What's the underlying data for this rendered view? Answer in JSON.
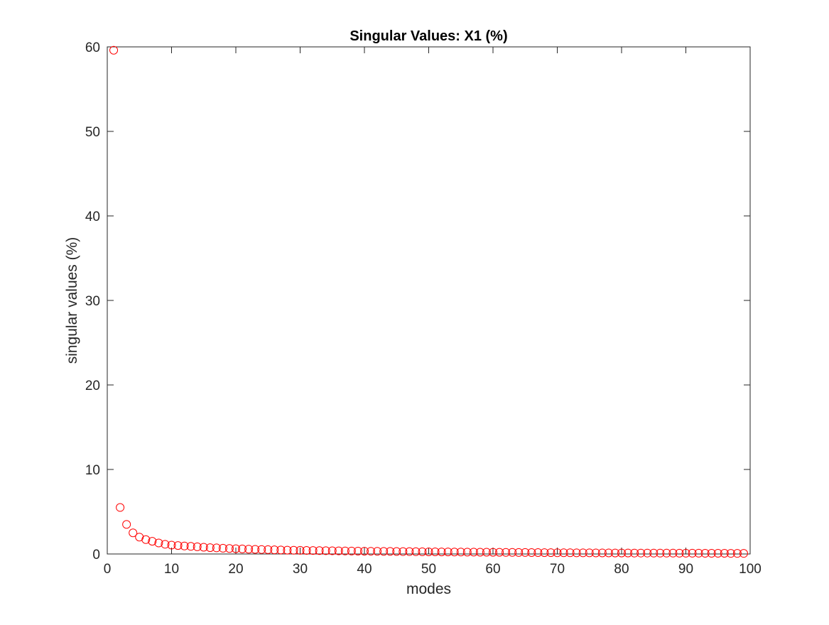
{
  "chart_data": {
    "type": "scatter",
    "title": "Singular Values: X1 (%)",
    "xlabel": "modes",
    "ylabel": "singular values (%)",
    "xlim": [
      0,
      100
    ],
    "ylim": [
      0,
      60
    ],
    "xticks": [
      0,
      10,
      20,
      30,
      40,
      50,
      60,
      70,
      80,
      90,
      100
    ],
    "yticks": [
      0,
      10,
      20,
      30,
      40,
      50,
      60
    ],
    "xtick_labels": [
      "0",
      "10",
      "20",
      "30",
      "40",
      "50",
      "60",
      "70",
      "80",
      "90",
      "100"
    ],
    "ytick_labels": [
      "0",
      "10",
      "20",
      "30",
      "40",
      "50",
      "60"
    ],
    "grid": false,
    "marker": "open-circle",
    "marker_color": "#ff0000",
    "axis_color": "#262626",
    "series": [
      {
        "x": [
          1,
          2,
          3,
          4,
          5,
          6,
          7,
          8,
          9,
          10,
          11,
          12,
          13,
          14,
          15,
          16,
          17,
          18,
          19,
          20,
          21,
          22,
          23,
          24,
          25,
          26,
          27,
          28,
          29,
          30,
          31,
          32,
          33,
          34,
          35,
          36,
          37,
          38,
          39,
          40,
          41,
          42,
          43,
          44,
          45,
          46,
          47,
          48,
          49,
          50,
          51,
          52,
          53,
          54,
          55,
          56,
          57,
          58,
          59,
          60,
          61,
          62,
          63,
          64,
          65,
          66,
          67,
          68,
          69,
          70,
          71,
          72,
          73,
          74,
          75,
          76,
          77,
          78,
          79,
          80,
          81,
          82,
          83,
          84,
          85,
          86,
          87,
          88,
          89,
          90,
          91,
          92,
          93,
          94,
          95,
          96,
          97,
          98,
          99
        ],
        "y": [
          59.6,
          5.5,
          3.5,
          2.5,
          2.0,
          1.7,
          1.5,
          1.3,
          1.15,
          1.05,
          1.0,
          0.95,
          0.9,
          0.85,
          0.8,
          0.75,
          0.72,
          0.68,
          0.65,
          0.62,
          0.6,
          0.57,
          0.55,
          0.53,
          0.51,
          0.49,
          0.47,
          0.45,
          0.44,
          0.43,
          0.42,
          0.41,
          0.4,
          0.39,
          0.38,
          0.37,
          0.36,
          0.35,
          0.34,
          0.33,
          0.32,
          0.31,
          0.3,
          0.3,
          0.29,
          0.28,
          0.28,
          0.27,
          0.26,
          0.25,
          0.25,
          0.24,
          0.24,
          0.23,
          0.23,
          0.22,
          0.22,
          0.21,
          0.21,
          0.2,
          0.2,
          0.19,
          0.19,
          0.18,
          0.18,
          0.17,
          0.17,
          0.16,
          0.16,
          0.15,
          0.15,
          0.15,
          0.14,
          0.14,
          0.14,
          0.13,
          0.13,
          0.13,
          0.12,
          0.12,
          0.12,
          0.11,
          0.11,
          0.11,
          0.1,
          0.1,
          0.1,
          0.1,
          0.09,
          0.09,
          0.09,
          0.09,
          0.08,
          0.08,
          0.08,
          0.08,
          0.07,
          0.07,
          0.07
        ]
      }
    ]
  }
}
